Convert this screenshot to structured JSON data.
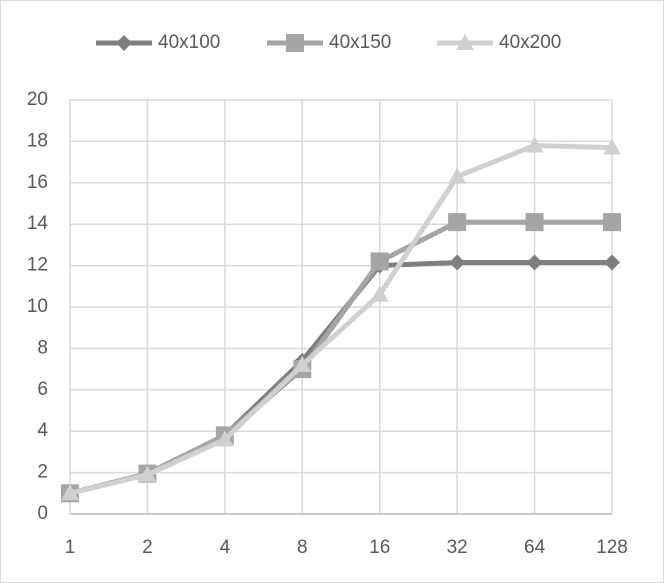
{
  "chart_data": {
    "type": "line",
    "categories": [
      "1",
      "2",
      "4",
      "8",
      "16",
      "32",
      "64",
      "128"
    ],
    "series": [
      {
        "name": "40x100",
        "color": "#7f7f7f",
        "marker": "diamond",
        "values": [
          1,
          1.95,
          3.8,
          7.4,
          12,
          12.15,
          12.15,
          12.15
        ]
      },
      {
        "name": "40x150",
        "color": "#a5a5a5",
        "marker": "square",
        "values": [
          1,
          1.95,
          3.8,
          7,
          12.2,
          14.1,
          14.1,
          14.1
        ]
      },
      {
        "name": "40x200",
        "color": "#d0d0d0",
        "marker": "triangle",
        "values": [
          1,
          1.9,
          3.6,
          7.2,
          10.6,
          16.3,
          17.8,
          17.7
        ]
      }
    ],
    "ylim": [
      0,
      20
    ],
    "yticks": [
      0,
      2,
      4,
      6,
      8,
      10,
      12,
      14,
      16,
      18,
      20
    ],
    "grid": true,
    "legend": "top"
  }
}
